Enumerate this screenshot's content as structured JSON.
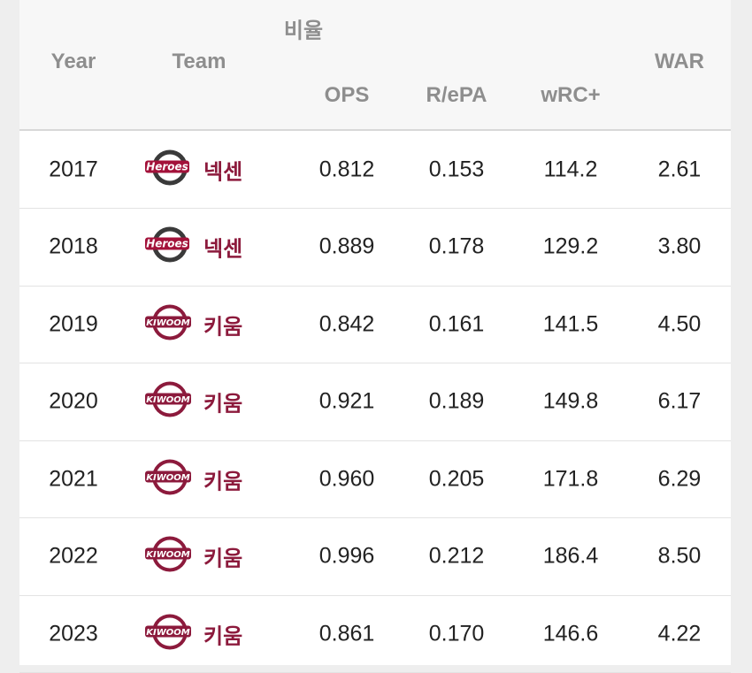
{
  "table": {
    "group_header": "비율",
    "columns": [
      "Year",
      "Team",
      "OPS",
      "R/ePA",
      "wRC+",
      "WAR"
    ],
    "rows": [
      [
        "2017",
        "넥센",
        "0.812",
        "0.153",
        "114.2",
        "2.61"
      ],
      [
        "2018",
        "넥센",
        "0.889",
        "0.178",
        "129.2",
        "3.80"
      ],
      [
        "2019",
        "키움",
        "0.842",
        "0.161",
        "141.5",
        "4.50"
      ],
      [
        "2020",
        "키움",
        "0.921",
        "0.189",
        "149.8",
        "6.17"
      ],
      [
        "2021",
        "키움",
        "0.960",
        "0.205",
        "171.8",
        "6.29"
      ],
      [
        "2022",
        "키움",
        "0.996",
        "0.212",
        "186.4",
        "8.50"
      ],
      [
        "2023",
        "키움",
        "0.861",
        "0.170",
        "146.6",
        "4.22"
      ]
    ]
  }
}
